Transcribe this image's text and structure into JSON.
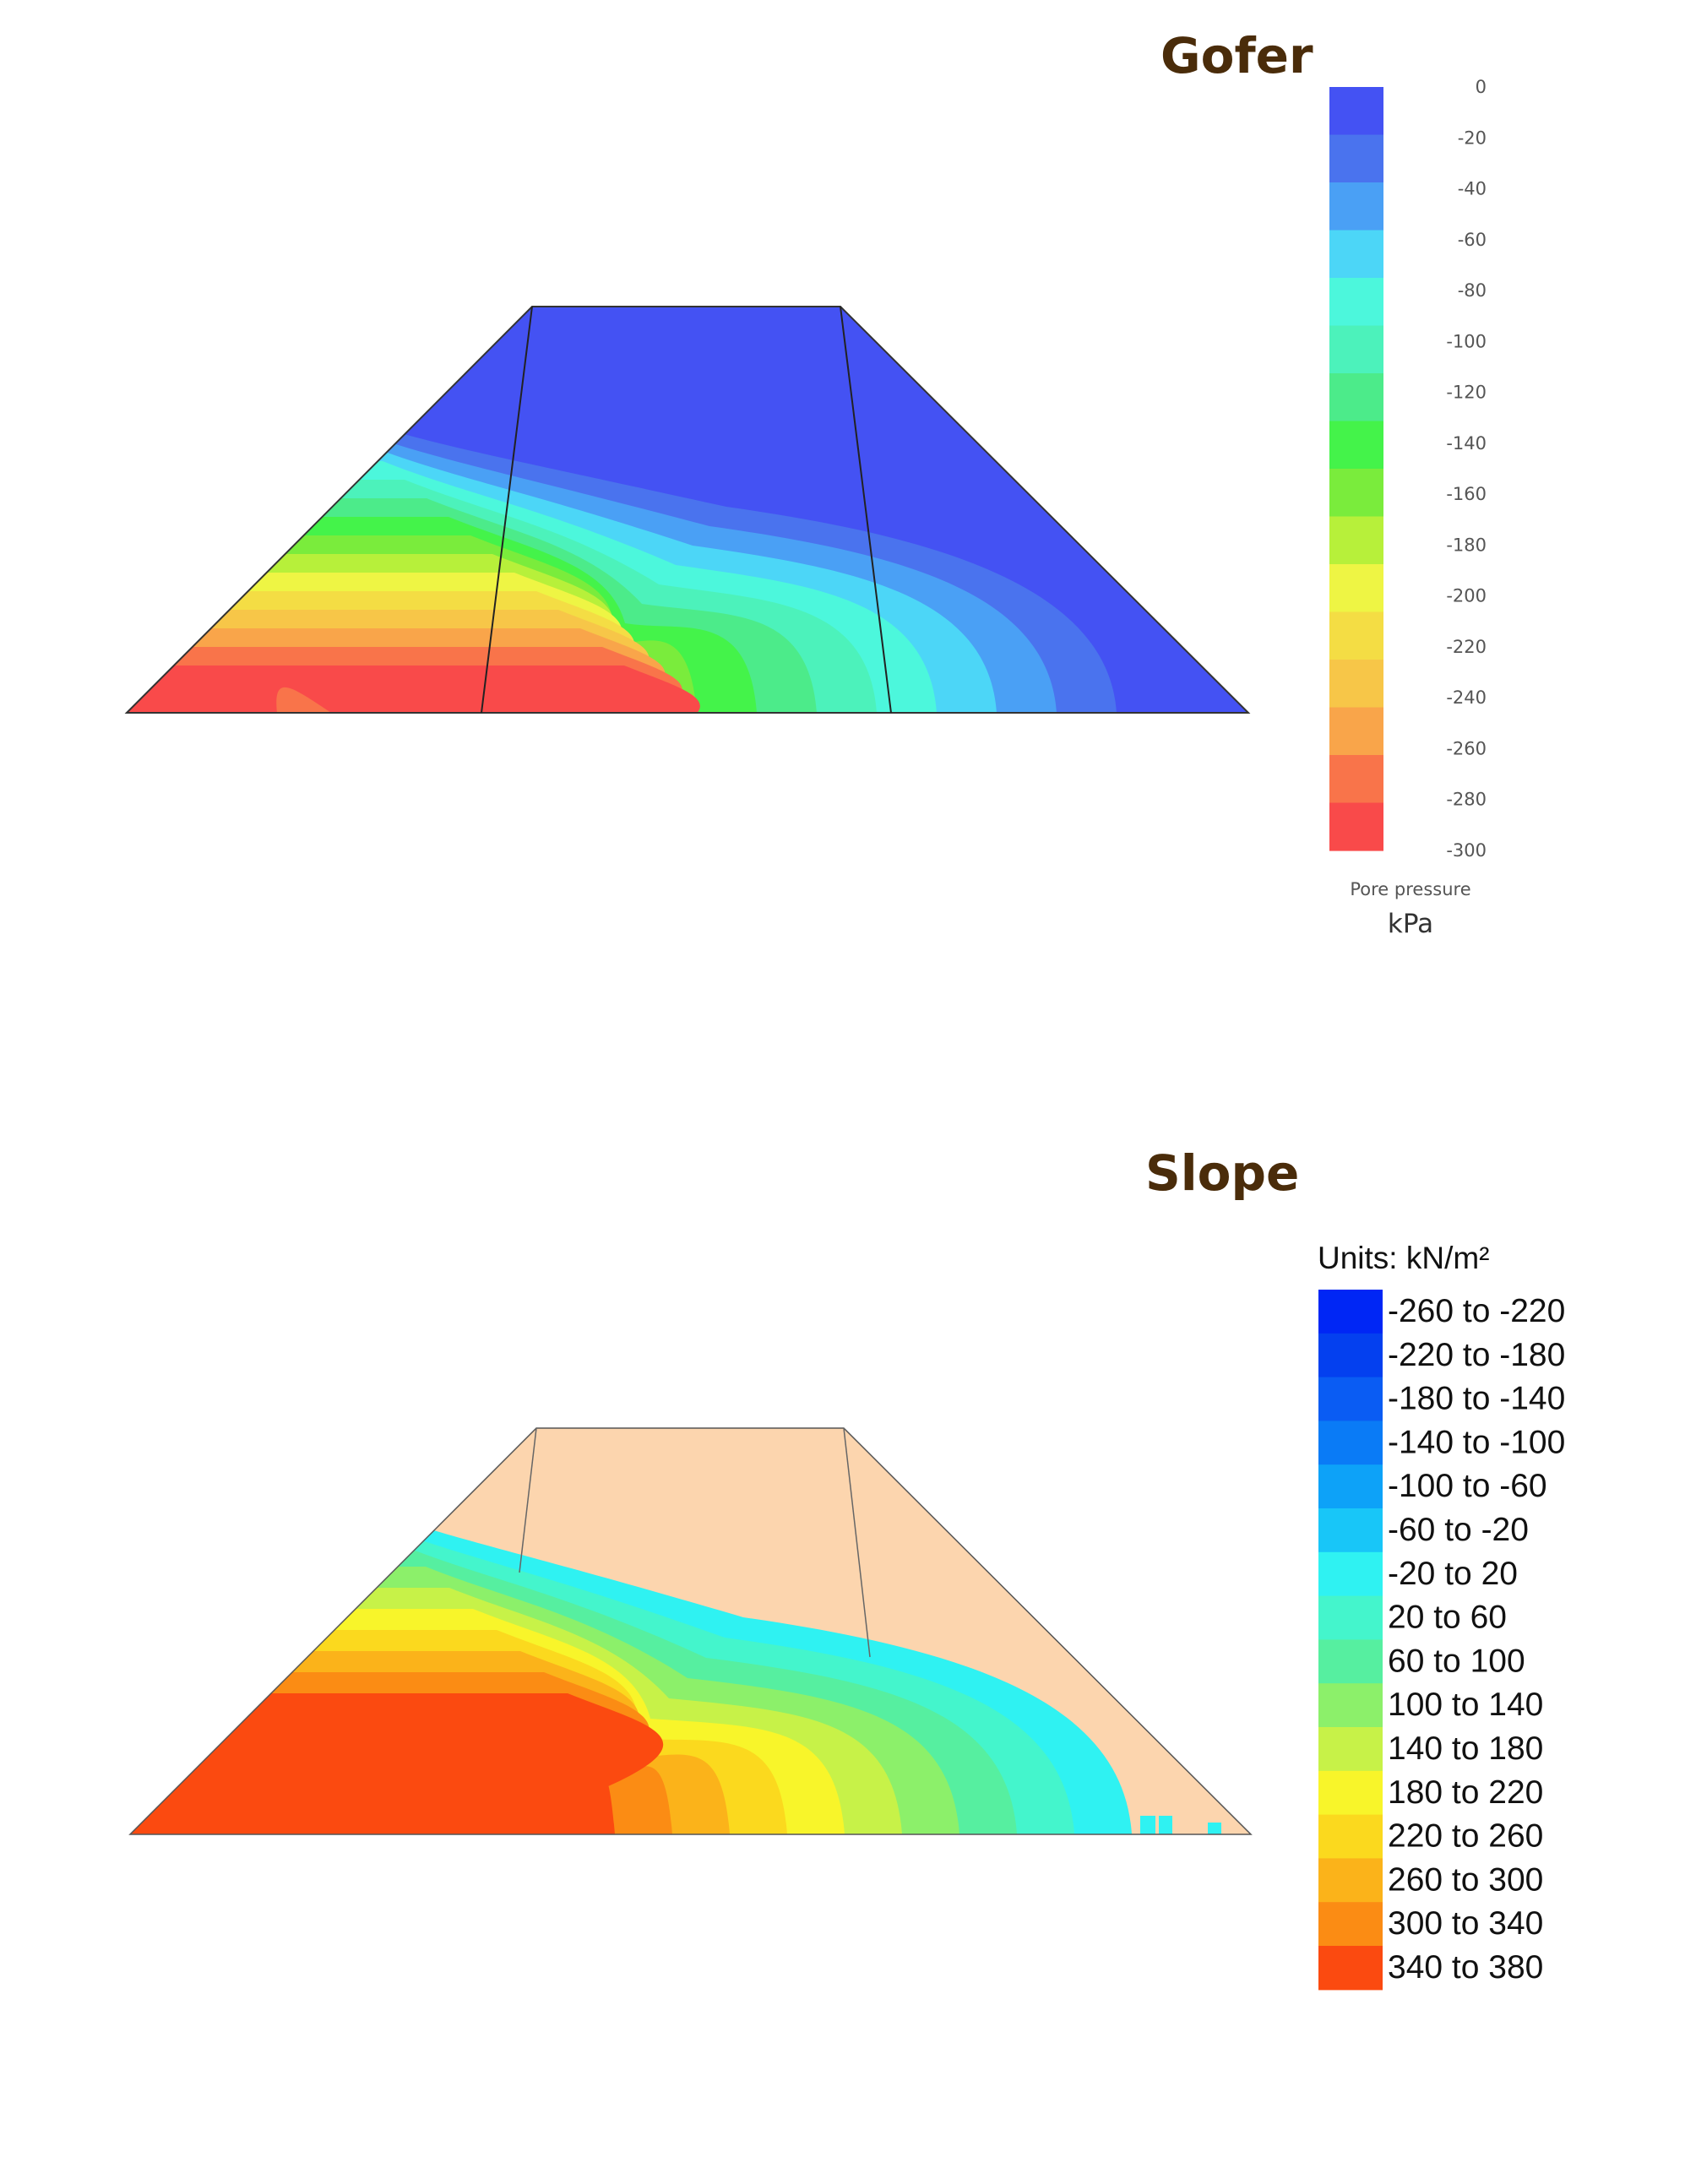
{
  "top_panel": {
    "title": "Gofer",
    "legend_ticks": [
      "0",
      "-20",
      "-40",
      "-60",
      "-80",
      "-100",
      "-120",
      "-140",
      "-160",
      "-180",
      "-200",
      "-220",
      "-240",
      "-260",
      "-280",
      "-300"
    ],
    "legend_colors": [
      "#4452f3",
      "#4a73ee",
      "#4aa0f5",
      "#4cd6f7",
      "#4cf7dc",
      "#4cf2bb",
      "#4ceb8a",
      "#44f34a",
      "#7aec3c",
      "#b7f03a",
      "#eef544",
      "#f4dd44",
      "#f7c648",
      "#f9a54a",
      "#f9744a",
      "#f94a4a"
    ],
    "legend_caption": "Pore pressure",
    "legend_unit": "kPa"
  },
  "bottom_panel": {
    "title": "Slope",
    "legend_units": "Units: kN/m²",
    "legend_labels": [
      "-260 to -220",
      "-220 to -180",
      "-180 to -140",
      "-140 to -100",
      "-100 to -60",
      "-60 to -20",
      "-20 to 20",
      "20 to 60",
      "60 to 100",
      "100 to 140",
      "140 to 180",
      "180 to 220",
      "220 to 260",
      "260 to 300",
      "300 to 340",
      "340 to 380"
    ],
    "legend_colors": [
      "#0026f5",
      "#0440ef",
      "#0a5cf3",
      "#0a7bf6",
      "#0da2f8",
      "#18c6f8",
      "#2ff2f2",
      "#44f5cc",
      "#56efa0",
      "#8cf06a",
      "#c7f248",
      "#f8f52a",
      "#fbd91e",
      "#fbb31a",
      "#fb8c14",
      "#fb4a10"
    ],
    "dry_zone_color": "#fcd5ae"
  }
}
